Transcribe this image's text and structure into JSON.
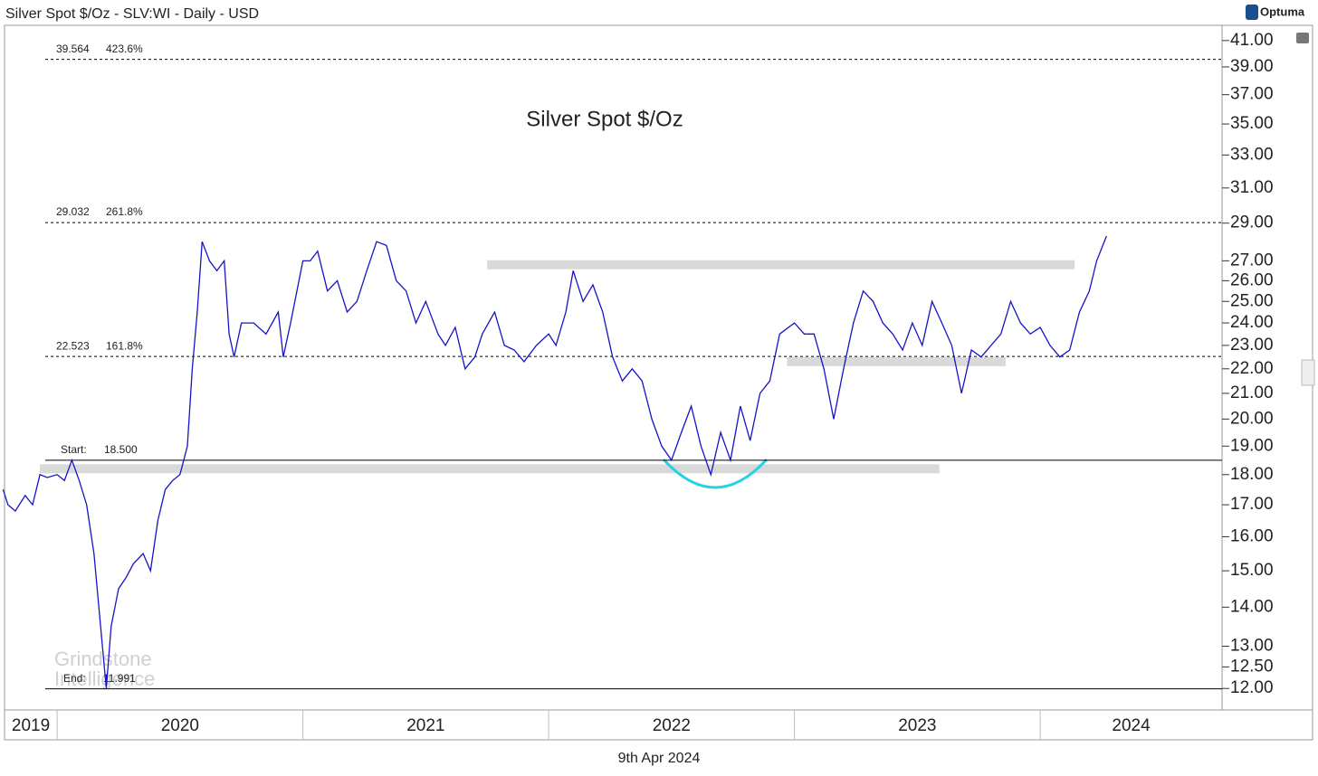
{
  "chart_data": {
    "type": "line",
    "header": "Silver Spot $/Oz - SLV:WI - Daily - USD",
    "brand": "Optuma",
    "title": "Silver Spot $/Oz",
    "date": "9th Apr 2024",
    "watermark": [
      "Grindstone",
      "Intelligence"
    ],
    "color": "#1414c8",
    "log_scale": true,
    "xlim": [
      2019.786,
      2024.74
    ],
    "xticks": [
      2020,
      2021,
      2022,
      2023,
      2024
    ],
    "year_labels": [
      2019,
      2020,
      2021,
      2022,
      2023,
      2024
    ],
    "ylim": [
      11.52,
      42.2
    ],
    "yticks": [
      {
        "value": 41,
        "label": "41.00"
      },
      {
        "value": 39,
        "label": "39.00"
      },
      {
        "value": 37,
        "label": "37.00"
      },
      {
        "value": 35,
        "label": "35.00"
      },
      {
        "value": 33,
        "label": "33.00"
      },
      {
        "value": 31,
        "label": "31.00"
      },
      {
        "value": 29,
        "label": "29.00"
      },
      {
        "value": 27,
        "label": "27.00"
      },
      {
        "value": 26,
        "label": "26.00"
      },
      {
        "value": 25,
        "label": "25.00"
      },
      {
        "value": 24,
        "label": "24.00"
      },
      {
        "value": 23,
        "label": "23.00"
      },
      {
        "value": 22,
        "label": "22.00"
      },
      {
        "value": 21,
        "label": "21.00"
      },
      {
        "value": 20,
        "label": "20.00"
      },
      {
        "value": 19,
        "label": "19.00"
      },
      {
        "value": 18,
        "label": "18.00"
      },
      {
        "value": 17,
        "label": "17.00"
      },
      {
        "value": 16,
        "label": "16.00"
      },
      {
        "value": 15,
        "label": "15.00"
      },
      {
        "value": 14,
        "label": "14.00"
      },
      {
        "value": 13,
        "label": "13.00"
      },
      {
        "value": 12.5,
        "label": "12.50"
      },
      {
        "value": 12,
        "label": "12.00"
      }
    ],
    "x": [
      2019.78,
      2019.8,
      2019.83,
      2019.87,
      2019.9,
      2019.93,
      2019.96,
      2020.0,
      2020.03,
      2020.06,
      2020.09,
      2020.12,
      2020.15,
      2020.2,
      2020.22,
      2020.25,
      2020.28,
      2020.31,
      2020.35,
      2020.38,
      2020.41,
      2020.44,
      2020.47,
      2020.5,
      2020.53,
      2020.55,
      2020.57,
      2020.59,
      2020.62,
      2020.65,
      2020.68,
      2020.7,
      2020.72,
      2020.75,
      2020.8,
      2020.85,
      2020.9,
      2020.92,
      2020.95,
      2021.0,
      2021.03,
      2021.06,
      2021.1,
      2021.14,
      2021.18,
      2021.22,
      2021.26,
      2021.3,
      2021.34,
      2021.38,
      2021.42,
      2021.46,
      2021.5,
      2021.55,
      2021.58,
      2021.62,
      2021.66,
      2021.7,
      2021.73,
      2021.78,
      2021.82,
      2021.86,
      2021.9,
      2021.95,
      2022.0,
      2022.03,
      2022.07,
      2022.1,
      2022.14,
      2022.18,
      2022.22,
      2022.26,
      2022.3,
      2022.34,
      2022.38,
      2022.42,
      2022.46,
      2022.5,
      2022.54,
      2022.58,
      2022.62,
      2022.66,
      2022.7,
      2022.74,
      2022.78,
      2022.82,
      2022.86,
      2022.9,
      2022.94,
      2023.0,
      2023.04,
      2023.08,
      2023.12,
      2023.16,
      2023.2,
      2023.24,
      2023.28,
      2023.32,
      2023.36,
      2023.4,
      2023.44,
      2023.48,
      2023.52,
      2023.56,
      2023.6,
      2023.64,
      2023.68,
      2023.72,
      2023.76,
      2023.8,
      2023.84,
      2023.88,
      2023.92,
      2023.96,
      2024.0,
      2024.04,
      2024.08,
      2024.12,
      2024.16,
      2024.2,
      2024.23,
      2024.27
    ],
    "values": [
      17.5,
      17.0,
      16.8,
      17.3,
      17.0,
      18.0,
      17.9,
      18.0,
      17.8,
      18.5,
      17.8,
      17.0,
      15.5,
      12.0,
      13.5,
      14.5,
      14.8,
      15.2,
      15.5,
      15.0,
      16.5,
      17.5,
      17.8,
      18.0,
      19.0,
      22.0,
      24.5,
      28.0,
      27.0,
      26.5,
      27.0,
      23.5,
      22.5,
      24.0,
      24.0,
      23.5,
      24.5,
      22.5,
      24.0,
      27.0,
      27.0,
      27.5,
      25.5,
      26.0,
      24.5,
      25.0,
      26.5,
      28.0,
      27.8,
      26.0,
      25.5,
      24.0,
      25.0,
      23.5,
      23.0,
      23.8,
      22.0,
      22.5,
      23.5,
      24.5,
      23.0,
      22.8,
      22.3,
      23.0,
      23.5,
      23.0,
      24.5,
      26.5,
      25.0,
      25.8,
      24.5,
      22.5,
      21.5,
      22.0,
      21.5,
      20.0,
      19.0,
      18.5,
      19.5,
      20.5,
      19.0,
      18.0,
      19.5,
      18.5,
      20.5,
      19.2,
      21.0,
      21.5,
      23.5,
      24.0,
      23.5,
      23.5,
      22.0,
      20.0,
      22.0,
      24.0,
      25.5,
      25.0,
      24.0,
      23.5,
      22.8,
      24.0,
      23.0,
      25.0,
      24.0,
      23.0,
      21.0,
      22.8,
      22.5,
      23.0,
      23.5,
      25.0,
      24.0,
      23.5,
      23.8,
      23.0,
      22.5,
      22.8,
      24.5,
      25.5,
      27.0,
      28.3
    ],
    "levels": [
      {
        "value": 39.564,
        "ratio": "423.6%"
      },
      {
        "value": 29.032,
        "ratio": "261.8%"
      },
      {
        "value": 22.523,
        "ratio": "161.8%"
      }
    ],
    "start": {
      "name": "Start:",
      "value": 18.5,
      "value_label": "18.500"
    },
    "end": {
      "name": "End:",
      "value": 11.991
    },
    "zones": [
      {
        "from": 2021.75,
        "to": 2024.14,
        "value": 26.8
      },
      {
        "from": 2019.93,
        "to": 2023.59,
        "value": 18.2
      },
      {
        "from": 2022.97,
        "to": 2023.86,
        "value": 22.3
      }
    ]
  }
}
